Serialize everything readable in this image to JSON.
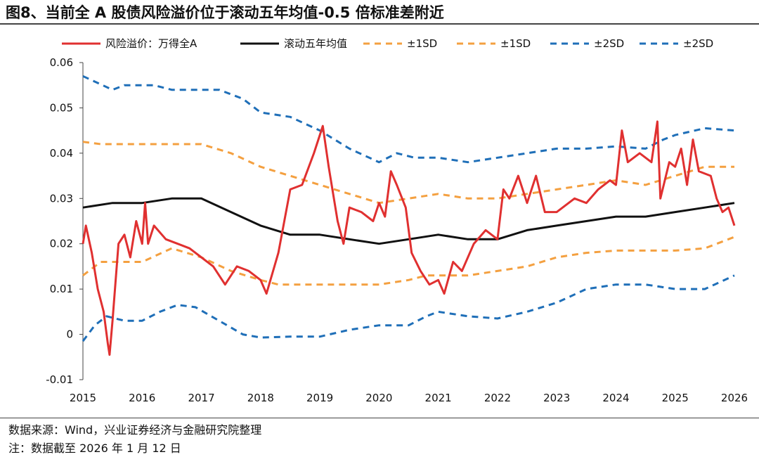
{
  "title": "图8、当前全 A 股债风险溢价位于滚动五年均值-0.5 倍标准差附近",
  "source": "数据来源：Wind，兴业证券经济与金融研究院整理",
  "note": "注：数据截至 2026 年 1 月 12 日",
  "chart_data": {
    "type": "line",
    "title": "图8、当前全 A 股债风险溢价位于滚动五年均值-0.5 倍标准差附近",
    "xlim": [
      2015,
      2026
    ],
    "ylim": [
      -0.01,
      0.06
    ],
    "x_ticks": [
      "2015",
      "2016",
      "2017",
      "2018",
      "2019",
      "2020",
      "2021",
      "2022",
      "2023",
      "2024",
      "2025",
      "2026"
    ],
    "y_ticks": [
      "-0.01",
      "0",
      "0.01",
      "0.02",
      "0.03",
      "0.04",
      "0.05",
      "0.06"
    ],
    "grid": false,
    "legend_position": "top",
    "series": [
      {
        "name": "风险溢价：万得全A",
        "color": "#e03030",
        "style": "solid",
        "x": [
          2015,
          2015.05,
          2015.15,
          2015.25,
          2015.35,
          2015.42,
          2015.45,
          2015.5,
          2015.6,
          2015.7,
          2015.8,
          2015.9,
          2016,
          2016.05,
          2016.1,
          2016.2,
          2016.4,
          2016.6,
          2016.8,
          2017,
          2017.2,
          2017.4,
          2017.6,
          2017.8,
          2018,
          2018.1,
          2018.3,
          2018.5,
          2018.7,
          2018.9,
          2019,
          2019.05,
          2019.15,
          2019.3,
          2019.4,
          2019.5,
          2019.7,
          2019.9,
          2020,
          2020.1,
          2020.2,
          2020.3,
          2020.45,
          2020.55,
          2020.7,
          2020.85,
          2021,
          2021.1,
          2021.25,
          2021.4,
          2021.6,
          2021.8,
          2022,
          2022.1,
          2022.2,
          2022.35,
          2022.5,
          2022.65,
          2022.8,
          2023,
          2023.3,
          2023.5,
          2023.7,
          2023.9,
          2024,
          2024.1,
          2024.2,
          2024.4,
          2024.6,
          2024.7,
          2024.75,
          2024.9,
          2025,
          2025.1,
          2025.2,
          2025.3,
          2025.4,
          2025.6,
          2025.7,
          2025.8,
          2025.9,
          2026
        ],
        "y": [
          0.02,
          0.024,
          0.018,
          0.01,
          0.005,
          -0.002,
          -0.0045,
          0.003,
          0.02,
          0.022,
          0.017,
          0.025,
          0.02,
          0.029,
          0.02,
          0.024,
          0.021,
          0.02,
          0.019,
          0.017,
          0.015,
          0.011,
          0.015,
          0.014,
          0.012,
          0.009,
          0.018,
          0.032,
          0.033,
          0.04,
          0.044,
          0.046,
          0.037,
          0.025,
          0.02,
          0.028,
          0.027,
          0.025,
          0.029,
          0.026,
          0.036,
          0.033,
          0.028,
          0.018,
          0.014,
          0.011,
          0.012,
          0.009,
          0.016,
          0.014,
          0.02,
          0.023,
          0.021,
          0.032,
          0.03,
          0.035,
          0.029,
          0.035,
          0.027,
          0.027,
          0.03,
          0.029,
          0.032,
          0.034,
          0.033,
          0.045,
          0.038,
          0.04,
          0.038,
          0.047,
          0.03,
          0.038,
          0.037,
          0.041,
          0.033,
          0.043,
          0.036,
          0.035,
          0.03,
          0.027,
          0.028,
          0.024
        ]
      },
      {
        "name": "滚动五年均值",
        "color": "#111111",
        "style": "solid",
        "x": [
          2015,
          2015.5,
          2016,
          2016.5,
          2017,
          2017.5,
          2018,
          2018.5,
          2019,
          2019.5,
          2020,
          2020.5,
          2021,
          2021.5,
          2022,
          2022.5,
          2023,
          2023.5,
          2024,
          2024.5,
          2025,
          2025.5,
          2026
        ],
        "y": [
          0.028,
          0.029,
          0.029,
          0.03,
          0.03,
          0.027,
          0.024,
          0.022,
          0.022,
          0.021,
          0.02,
          0.021,
          0.022,
          0.021,
          0.021,
          0.023,
          0.024,
          0.025,
          0.026,
          0.026,
          0.027,
          0.028,
          0.029
        ]
      },
      {
        "name": "±1SD",
        "color": "#f4a040",
        "style": "dash",
        "x": [
          2015,
          2015.3,
          2016,
          2017,
          2017.5,
          2018,
          2018.5,
          2019,
          2019.5,
          2020,
          2020.5,
          2021,
          2021.5,
          2022,
          2022.5,
          2023,
          2023.5,
          2024,
          2024.5,
          2025,
          2025.5,
          2026
        ],
        "y": [
          0.0425,
          0.042,
          0.042,
          0.042,
          0.04,
          0.037,
          0.035,
          0.033,
          0.031,
          0.029,
          0.03,
          0.031,
          0.03,
          0.03,
          0.031,
          0.032,
          0.033,
          0.034,
          0.033,
          0.035,
          0.037,
          0.037
        ]
      },
      {
        "name": "±1SD",
        "color": "#f4a040",
        "style": "dash",
        "x": [
          2015,
          2015.3,
          2016,
          2016.5,
          2017,
          2017.5,
          2018,
          2018.3,
          2019,
          2020,
          2020.5,
          2020.8,
          2021,
          2021.5,
          2022,
          2022.5,
          2023,
          2023.5,
          2024,
          2025,
          2025.5,
          2026
        ],
        "y": [
          0.013,
          0.016,
          0.016,
          0.019,
          0.017,
          0.014,
          0.012,
          0.011,
          0.011,
          0.011,
          0.012,
          0.013,
          0.013,
          0.013,
          0.014,
          0.015,
          0.017,
          0.018,
          0.0185,
          0.0185,
          0.019,
          0.0215
        ]
      },
      {
        "name": "±2SD",
        "color": "#1f6fb8",
        "style": "dash",
        "x": [
          2015,
          2015.5,
          2015.7,
          2016.2,
          2016.5,
          2017,
          2017.3,
          2017.7,
          2018,
          2018.5,
          2019,
          2019.5,
          2020,
          2020.3,
          2020.6,
          2021,
          2021.5,
          2022,
          2022.5,
          2023,
          2023.5,
          2024,
          2024.5,
          2024.8,
          2025,
          2025.5,
          2026
        ],
        "y": [
          0.057,
          0.054,
          0.055,
          0.055,
          0.054,
          0.054,
          0.054,
          0.052,
          0.049,
          0.048,
          0.045,
          0.041,
          0.038,
          0.04,
          0.039,
          0.039,
          0.038,
          0.039,
          0.04,
          0.041,
          0.041,
          0.0415,
          0.041,
          0.043,
          0.044,
          0.0455,
          0.045
        ]
      },
      {
        "name": "±2SD",
        "color": "#1f6fb8",
        "style": "dash",
        "x": [
          2015,
          2015.2,
          2015.4,
          2015.7,
          2016,
          2016.3,
          2016.6,
          2016.9,
          2017.3,
          2017.7,
          2018,
          2018.5,
          2019,
          2019.5,
          2020,
          2020.5,
          2020.8,
          2021,
          2021.5,
          2022,
          2022.5,
          2023,
          2023.5,
          2024,
          2024.5,
          2025,
          2025.5,
          2026
        ],
        "y": [
          -0.0015,
          0.002,
          0.004,
          0.003,
          0.003,
          0.005,
          0.0065,
          0.006,
          0.003,
          0.0,
          -0.0007,
          -0.0005,
          -0.0005,
          0.001,
          0.002,
          0.002,
          0.004,
          0.005,
          0.004,
          0.0035,
          0.005,
          0.007,
          0.01,
          0.011,
          0.011,
          0.01,
          0.01,
          0.013
        ]
      }
    ]
  }
}
